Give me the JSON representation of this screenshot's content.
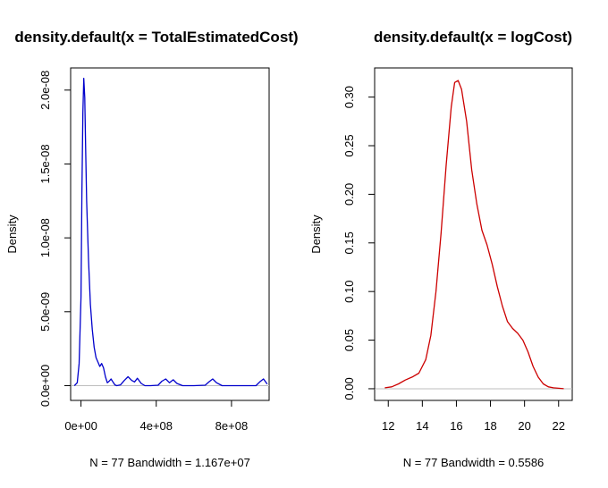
{
  "chart_data": [
    {
      "type": "line",
      "title": "density.default(x = TotalEstimatedCost)",
      "xlabel": "N = 77   Bandwidth = 1.167e+07",
      "ylabel": "Density",
      "xlim": [
        -55000000.0,
        1000000000.0
      ],
      "ylim": [
        -1e-09,
        2.15e-08
      ],
      "xticks": [
        0,
        400000000.0,
        800000000.0
      ],
      "xtick_labels": [
        "0e+00",
        "4e+08",
        "8e+08"
      ],
      "yticks": [
        0,
        5e-09,
        1e-08,
        1.5e-08,
        2e-08
      ],
      "ytick_labels": [
        "0.0e+00",
        "5.0e-09",
        "1.0e-08",
        "1.5e-08",
        "2.0e-08"
      ],
      "series": [
        {
          "color": "#0000cc",
          "x": [
            -35000000.0,
            -20000000.0,
            -10000000.0,
            0,
            5000000.0,
            10000000.0,
            15000000.0,
            20000000.0,
            25000000.0,
            30000000.0,
            40000000.0,
            50000000.0,
            60000000.0,
            70000000.0,
            80000000.0,
            90000000.0,
            100000000.0,
            110000000.0,
            120000000.0,
            130000000.0,
            140000000.0,
            150000000.0,
            160000000.0,
            170000000.0,
            180000000.0,
            190000000.0,
            210000000.0,
            230000000.0,
            250000000.0,
            270000000.0,
            285000000.0,
            300000000.0,
            320000000.0,
            340000000.0,
            370000000.0,
            410000000.0,
            430000000.0,
            450000000.0,
            470000000.0,
            490000000.0,
            510000000.0,
            540000000.0,
            600000000.0,
            660000000.0,
            680000000.0,
            700000000.0,
            720000000.0,
            750000000.0,
            850000000.0,
            930000000.0,
            950000000.0,
            970000000.0,
            990000000.0
          ],
          "y": [
            0,
            2e-10,
            1.5e-09,
            6e-09,
            1.3e-08,
            1.85e-08,
            2.08e-08,
            1.95e-08,
            1.6e-08,
            1.25e-08,
            8.5e-09,
            5.5e-09,
            3.8e-09,
            2.6e-09,
            1.9e-09,
            1.6e-09,
            1.3e-09,
            1.5e-09,
            1.2e-09,
            6e-10,
            2e-10,
            3e-10,
            4.5e-10,
            2.5e-10,
            5e-11,
            0,
            5e-11,
            3.5e-10,
            6e-10,
            3.5e-10,
            2.5e-10,
            5e-10,
            1.5e-10,
            0,
            0,
            3e-11,
            3e-10,
            4.5e-10,
            2e-10,
            4e-10,
            1.5e-10,
            0,
            0,
            3e-11,
            2.5e-10,
            4.5e-10,
            2e-10,
            0,
            0,
            0,
            2.5e-10,
            4.5e-10,
            1e-10
          ]
        }
      ]
    },
    {
      "type": "line",
      "title": "density.default(x = logCost)",
      "xlabel": "N = 77   Bandwidth = 0.5586",
      "ylabel": "Density",
      "xlim": [
        11.2,
        22.8
      ],
      "ylim": [
        -0.012,
        0.33
      ],
      "xticks": [
        12,
        14,
        16,
        18,
        20,
        22
      ],
      "xtick_labels": [
        "12",
        "14",
        "16",
        "18",
        "20",
        "22"
      ],
      "yticks": [
        0,
        0.05,
        0.1,
        0.15,
        0.2,
        0.25,
        0.3
      ],
      "ytick_labels": [
        "0.00",
        "0.05",
        "0.10",
        "0.15",
        "0.20",
        "0.25",
        "0.30"
      ],
      "series": [
        {
          "color": "#cc0000",
          "x": [
            11.8,
            12.2,
            12.6,
            13.0,
            13.4,
            13.8,
            14.2,
            14.5,
            14.8,
            15.1,
            15.4,
            15.7,
            15.9,
            16.1,
            16.3,
            16.6,
            16.9,
            17.2,
            17.5,
            17.8,
            18.1,
            18.4,
            18.7,
            19.0,
            19.3,
            19.6,
            19.9,
            20.2,
            20.5,
            20.8,
            21.1,
            21.4,
            21.7,
            22.0,
            22.3
          ],
          "y": [
            0.001,
            0.002,
            0.005,
            0.009,
            0.012,
            0.016,
            0.03,
            0.055,
            0.1,
            0.16,
            0.23,
            0.29,
            0.315,
            0.317,
            0.308,
            0.275,
            0.225,
            0.19,
            0.163,
            0.148,
            0.128,
            0.105,
            0.085,
            0.069,
            0.062,
            0.057,
            0.05,
            0.038,
            0.023,
            0.012,
            0.005,
            0.002,
            0.001,
            0.0005,
            0
          ]
        }
      ]
    }
  ]
}
